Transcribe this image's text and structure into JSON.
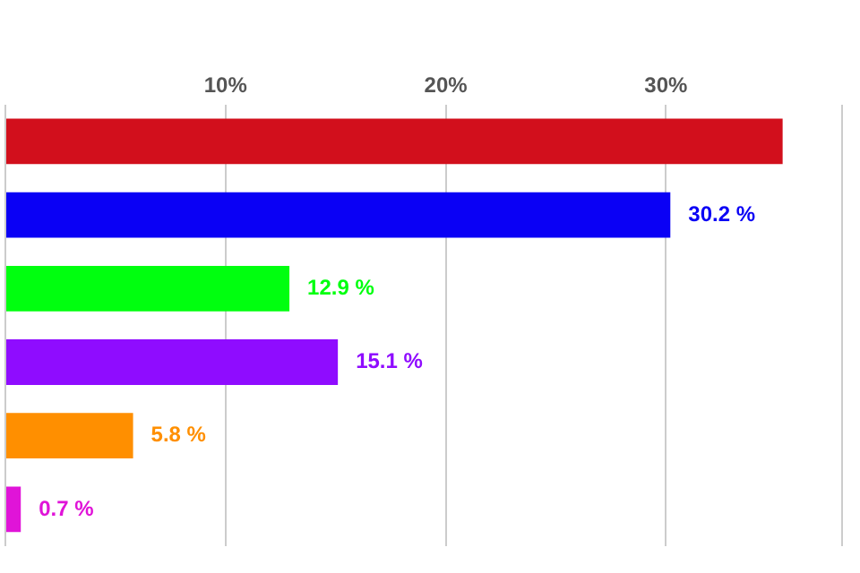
{
  "chart_data": {
    "type": "bar",
    "orientation": "horizontal",
    "categories": [
      null,
      null,
      null,
      null,
      null,
      null
    ],
    "values": [
      35.3,
      30.2,
      12.9,
      15.1,
      5.8,
      0.7
    ],
    "colors": [
      "#d20f1c",
      "#0a00f5",
      "#00ff0f",
      "#8f0cff",
      "#ff8f00",
      "#e014d8"
    ],
    "value_labels": [
      null,
      "30.2 %",
      "12.9 %",
      "15.1 %",
      "5.8 %",
      "0.7 %"
    ],
    "xlim": [
      0,
      38
    ],
    "xticks": [
      {
        "value": 0,
        "label": null
      },
      {
        "value": 10,
        "label": "10%"
      },
      {
        "value": 20,
        "label": "20%"
      },
      {
        "value": 30,
        "label": "30%"
      },
      {
        "value": 38,
        "label": null
      }
    ],
    "grid": "x"
  }
}
